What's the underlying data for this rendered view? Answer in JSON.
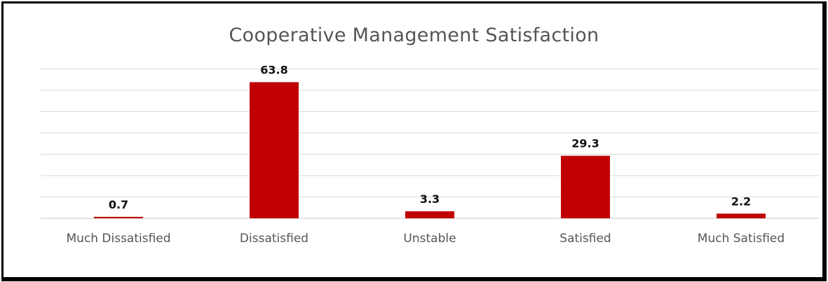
{
  "chart_data": {
    "type": "bar",
    "title": "Cooperative Management Satisfaction",
    "categories": [
      "Much Dissatisfied",
      "Dissatisfied",
      "Unstable",
      "Satisfied",
      "Much Satisfied"
    ],
    "values": [
      0.7,
      63.8,
      3.3,
      29.3,
      2.2
    ],
    "xlabel": "",
    "ylabel": "",
    "ylim": [
      0,
      70
    ],
    "grid": true,
    "legend": "none",
    "bar_color": "#C00000"
  }
}
